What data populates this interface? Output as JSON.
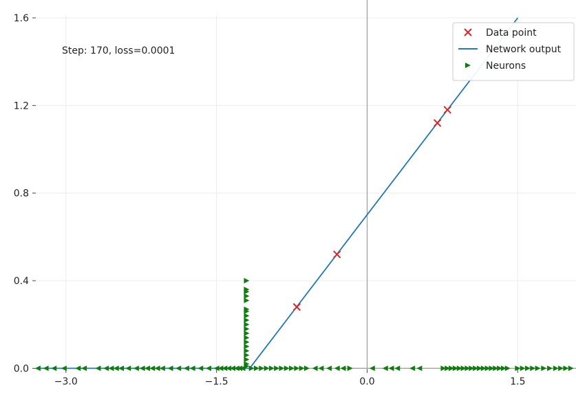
{
  "chart_data": {
    "type": "scatter",
    "xlim": [
      -3.3,
      2.08
    ],
    "ylim": [
      -0.005,
      1.6
    ],
    "grid": true,
    "x_ticks": [
      {
        "value": -3.0,
        "label": "−3.0"
      },
      {
        "value": -1.5,
        "label": "−1.5"
      },
      {
        "value": 0.0,
        "label": "0.0"
      },
      {
        "value": 1.5,
        "label": "1.5"
      }
    ],
    "y_ticks": [
      {
        "value": 0.0,
        "label": "0.0"
      },
      {
        "value": 0.4,
        "label": "0.4"
      },
      {
        "value": 0.8,
        "label": "0.8"
      },
      {
        "value": 1.2,
        "label": "1.2"
      },
      {
        "value": 1.6,
        "label": "1.6"
      }
    ],
    "annotation": "Step: 170, loss=0.0001",
    "legend": {
      "position": "top-right",
      "entries": [
        {
          "label": "Data point",
          "marker": "x",
          "color": "#d62728"
        },
        {
          "label": "Network output",
          "marker": "line",
          "color": "#1f77b4"
        },
        {
          "label": "Neurons",
          "marker": "triangle-right",
          "color": "#107c10"
        }
      ]
    },
    "series": [
      {
        "name": "Data point",
        "marker": "x",
        "color": "#d62728",
        "points": [
          {
            "x": -0.7,
            "y": 0.28
          },
          {
            "x": -0.3,
            "y": 0.52
          },
          {
            "x": 0.7,
            "y": 1.12
          },
          {
            "x": 0.8,
            "y": 1.18
          }
        ]
      },
      {
        "name": "Network output",
        "marker": "line",
        "color": "#1f77b4",
        "points": [
          {
            "x": -3.3,
            "y": 0.0
          },
          {
            "x": -1.17,
            "y": 0.0
          },
          {
            "x": 1.5,
            "y": 1.6
          }
        ]
      },
      {
        "name": "Neurons",
        "marker": "triangle",
        "color": "#107c10",
        "points": [
          {
            "x": -1.2,
            "y": 0.4,
            "dir": "right"
          },
          {
            "x": -1.2,
            "y": 0.36,
            "dir": "right"
          },
          {
            "x": -1.2,
            "y": 0.35,
            "dir": "right"
          },
          {
            "x": -1.2,
            "y": 0.33,
            "dir": "right"
          },
          {
            "x": -1.2,
            "y": 0.31,
            "dir": "right"
          },
          {
            "x": -1.2,
            "y": 0.27,
            "dir": "right"
          },
          {
            "x": -1.2,
            "y": 0.26,
            "dir": "right"
          },
          {
            "x": -1.2,
            "y": 0.24,
            "dir": "right"
          },
          {
            "x": -1.2,
            "y": 0.22,
            "dir": "right"
          },
          {
            "x": -1.2,
            "y": 0.2,
            "dir": "right"
          },
          {
            "x": -1.2,
            "y": 0.18,
            "dir": "right"
          },
          {
            "x": -1.2,
            "y": 0.16,
            "dir": "right"
          },
          {
            "x": -1.2,
            "y": 0.14,
            "dir": "right"
          },
          {
            "x": -1.2,
            "y": 0.12,
            "dir": "right"
          },
          {
            "x": -1.2,
            "y": 0.1,
            "dir": "right"
          },
          {
            "x": -1.2,
            "y": 0.08,
            "dir": "right"
          },
          {
            "x": -1.2,
            "y": 0.06,
            "dir": "right"
          },
          {
            "x": -1.2,
            "y": 0.04,
            "dir": "right"
          },
          {
            "x": -1.2,
            "y": 0.02,
            "dir": "right"
          },
          {
            "x": -1.2,
            "y": 0.01,
            "dir": "right"
          },
          {
            "x": -3.28,
            "y": 0.0,
            "dir": "left"
          },
          {
            "x": -3.2,
            "y": 0.0,
            "dir": "left"
          },
          {
            "x": -3.12,
            "y": 0.0,
            "dir": "left"
          },
          {
            "x": -3.02,
            "y": 0.0,
            "dir": "left"
          },
          {
            "x": -2.88,
            "y": 0.0,
            "dir": "left"
          },
          {
            "x": -2.82,
            "y": 0.0,
            "dir": "left"
          },
          {
            "x": -2.68,
            "y": 0.0,
            "dir": "left"
          },
          {
            "x": -2.6,
            "y": 0.0,
            "dir": "left"
          },
          {
            "x": -2.55,
            "y": 0.0,
            "dir": "left"
          },
          {
            "x": -2.5,
            "y": 0.0,
            "dir": "left"
          },
          {
            "x": -2.45,
            "y": 0.0,
            "dir": "left"
          },
          {
            "x": -2.38,
            "y": 0.0,
            "dir": "left"
          },
          {
            "x": -2.3,
            "y": 0.0,
            "dir": "left"
          },
          {
            "x": -2.24,
            "y": 0.0,
            "dir": "left"
          },
          {
            "x": -2.19,
            "y": 0.0,
            "dir": "left"
          },
          {
            "x": -2.14,
            "y": 0.0,
            "dir": "left"
          },
          {
            "x": -2.09,
            "y": 0.0,
            "dir": "left"
          },
          {
            "x": -2.04,
            "y": 0.0,
            "dir": "left"
          },
          {
            "x": -1.96,
            "y": 0.0,
            "dir": "left"
          },
          {
            "x": -1.88,
            "y": 0.0,
            "dir": "left"
          },
          {
            "x": -1.8,
            "y": 0.0,
            "dir": "left"
          },
          {
            "x": -1.74,
            "y": 0.0,
            "dir": "left"
          },
          {
            "x": -1.66,
            "y": 0.0,
            "dir": "left"
          },
          {
            "x": -1.58,
            "y": 0.0,
            "dir": "left"
          },
          {
            "x": -1.5,
            "y": 0.0,
            "dir": "left"
          },
          {
            "x": -1.46,
            "y": 0.0,
            "dir": "left"
          },
          {
            "x": -1.42,
            "y": 0.0,
            "dir": "left"
          },
          {
            "x": -1.38,
            "y": 0.0,
            "dir": "left"
          },
          {
            "x": -1.34,
            "y": 0.0,
            "dir": "left"
          },
          {
            "x": -1.3,
            "y": 0.0,
            "dir": "left"
          },
          {
            "x": -1.27,
            "y": 0.0,
            "dir": "left"
          },
          {
            "x": -1.24,
            "y": 0.0,
            "dir": "left"
          },
          {
            "x": -1.15,
            "y": 0.0,
            "dir": "right"
          },
          {
            "x": -1.1,
            "y": 0.0,
            "dir": "right"
          },
          {
            "x": -1.05,
            "y": 0.0,
            "dir": "right"
          },
          {
            "x": -1.0,
            "y": 0.0,
            "dir": "right"
          },
          {
            "x": -0.95,
            "y": 0.0,
            "dir": "right"
          },
          {
            "x": -0.9,
            "y": 0.0,
            "dir": "right"
          },
          {
            "x": -0.85,
            "y": 0.0,
            "dir": "right"
          },
          {
            "x": -0.8,
            "y": 0.0,
            "dir": "right"
          },
          {
            "x": -0.75,
            "y": 0.0,
            "dir": "right"
          },
          {
            "x": -0.7,
            "y": 0.0,
            "dir": "right"
          },
          {
            "x": -0.65,
            "y": 0.0,
            "dir": "right"
          },
          {
            "x": -0.6,
            "y": 0.0,
            "dir": "right"
          },
          {
            "x": -0.52,
            "y": 0.0,
            "dir": "left"
          },
          {
            "x": -0.46,
            "y": 0.0,
            "dir": "left"
          },
          {
            "x": -0.38,
            "y": 0.0,
            "dir": "left"
          },
          {
            "x": -0.3,
            "y": 0.0,
            "dir": "left"
          },
          {
            "x": -0.24,
            "y": 0.0,
            "dir": "left"
          },
          {
            "x": -0.17,
            "y": 0.0,
            "dir": "right"
          },
          {
            "x": 0.05,
            "y": 0.0,
            "dir": "left"
          },
          {
            "x": 0.18,
            "y": 0.0,
            "dir": "left"
          },
          {
            "x": 0.24,
            "y": 0.0,
            "dir": "left"
          },
          {
            "x": 0.3,
            "y": 0.0,
            "dir": "left"
          },
          {
            "x": 0.45,
            "y": 0.0,
            "dir": "left"
          },
          {
            "x": 0.52,
            "y": 0.0,
            "dir": "left"
          },
          {
            "x": 0.76,
            "y": 0.0,
            "dir": "right"
          },
          {
            "x": 0.8,
            "y": 0.0,
            "dir": "right"
          },
          {
            "x": 0.84,
            "y": 0.0,
            "dir": "right"
          },
          {
            "x": 0.88,
            "y": 0.0,
            "dir": "right"
          },
          {
            "x": 0.92,
            "y": 0.0,
            "dir": "right"
          },
          {
            "x": 0.96,
            "y": 0.0,
            "dir": "right"
          },
          {
            "x": 1.0,
            "y": 0.0,
            "dir": "right"
          },
          {
            "x": 1.04,
            "y": 0.0,
            "dir": "right"
          },
          {
            "x": 1.08,
            "y": 0.0,
            "dir": "right"
          },
          {
            "x": 1.12,
            "y": 0.0,
            "dir": "right"
          },
          {
            "x": 1.16,
            "y": 0.0,
            "dir": "right"
          },
          {
            "x": 1.2,
            "y": 0.0,
            "dir": "right"
          },
          {
            "x": 1.24,
            "y": 0.0,
            "dir": "right"
          },
          {
            "x": 1.28,
            "y": 0.0,
            "dir": "right"
          },
          {
            "x": 1.32,
            "y": 0.0,
            "dir": "right"
          },
          {
            "x": 1.36,
            "y": 0.0,
            "dir": "right"
          },
          {
            "x": 1.4,
            "y": 0.0,
            "dir": "right"
          },
          {
            "x": 1.5,
            "y": 0.0,
            "dir": "right"
          },
          {
            "x": 1.55,
            "y": 0.0,
            "dir": "right"
          },
          {
            "x": 1.6,
            "y": 0.0,
            "dir": "right"
          },
          {
            "x": 1.65,
            "y": 0.0,
            "dir": "right"
          },
          {
            "x": 1.7,
            "y": 0.0,
            "dir": "right"
          },
          {
            "x": 1.76,
            "y": 0.0,
            "dir": "right"
          },
          {
            "x": 1.82,
            "y": 0.0,
            "dir": "right"
          },
          {
            "x": 1.88,
            "y": 0.0,
            "dir": "right"
          },
          {
            "x": 1.93,
            "y": 0.0,
            "dir": "right"
          },
          {
            "x": 1.98,
            "y": 0.0,
            "dir": "right"
          },
          {
            "x": 2.03,
            "y": 0.0,
            "dir": "right"
          }
        ]
      }
    ]
  }
}
